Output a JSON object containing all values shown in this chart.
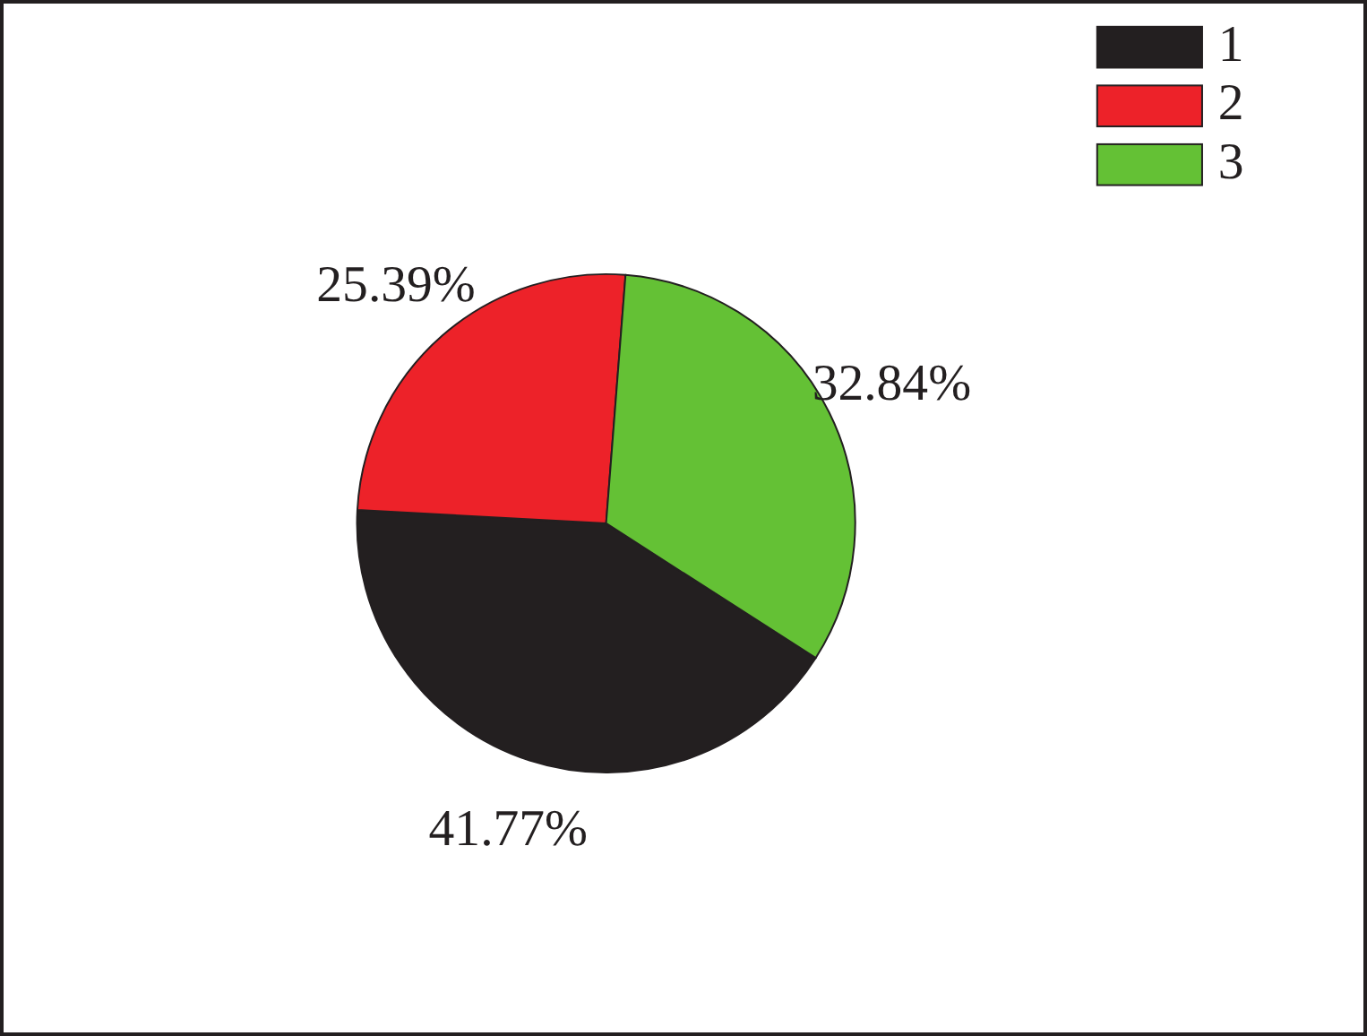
{
  "chart_data": {
    "type": "pie",
    "categories": [
      "1",
      "2",
      "3"
    ],
    "values": [
      41.77,
      25.39,
      32.84
    ],
    "colors": [
      "#231f20",
      "#ed2229",
      "#64c135"
    ],
    "value_labels": [
      "41.77%",
      "25.39%",
      "32.84%"
    ],
    "legend": "top right"
  }
}
